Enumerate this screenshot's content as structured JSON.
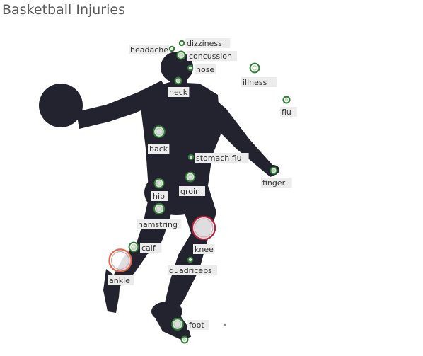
{
  "chart_data": {
    "type": "scatter",
    "title": "Basketball Injuries",
    "points": [
      {
        "label": "dizziness",
        "size": 1,
        "color": "#2e7d32"
      },
      {
        "label": "headache",
        "size": 1,
        "color": "#2e7d32"
      },
      {
        "label": "concussion",
        "size": 3,
        "color": "#2e7d32"
      },
      {
        "label": "nose",
        "size": 1,
        "color": "#2e7d32"
      },
      {
        "label": "illness",
        "size": 4,
        "color": "#2e7d32"
      },
      {
        "label": "neck",
        "size": 2,
        "color": "#2e7d32"
      },
      {
        "label": "flu",
        "size": 2,
        "color": "#2e7d32"
      },
      {
        "label": "back",
        "size": 6,
        "color": "#2e7d32"
      },
      {
        "label": "stomach flu",
        "size": 1,
        "color": "#2e7d32"
      },
      {
        "label": "finger",
        "size": 2,
        "color": "#2e7d32"
      },
      {
        "label": "groin",
        "size": 4,
        "color": "#2e7d32"
      },
      {
        "label": "hip",
        "size": 4,
        "color": "#2e7d32"
      },
      {
        "label": "hamstring",
        "size": 5,
        "color": "#2e7d32"
      },
      {
        "label": "knee",
        "size": 10,
        "color": "#b2213d"
      },
      {
        "label": "calf",
        "size": 4,
        "color": "#2e7d32"
      },
      {
        "label": "quadriceps",
        "size": 1,
        "color": "#2e7d32"
      },
      {
        "label": "ankle",
        "size": 9,
        "color": "#e0664a"
      },
      {
        "label": "foot",
        "size": 6,
        "color": "#2e7d32"
      },
      {
        "label": "",
        "size": 2,
        "color": "#2e7d32"
      },
      {
        "label": "",
        "size": 0,
        "color": "#888888"
      }
    ]
  }
}
